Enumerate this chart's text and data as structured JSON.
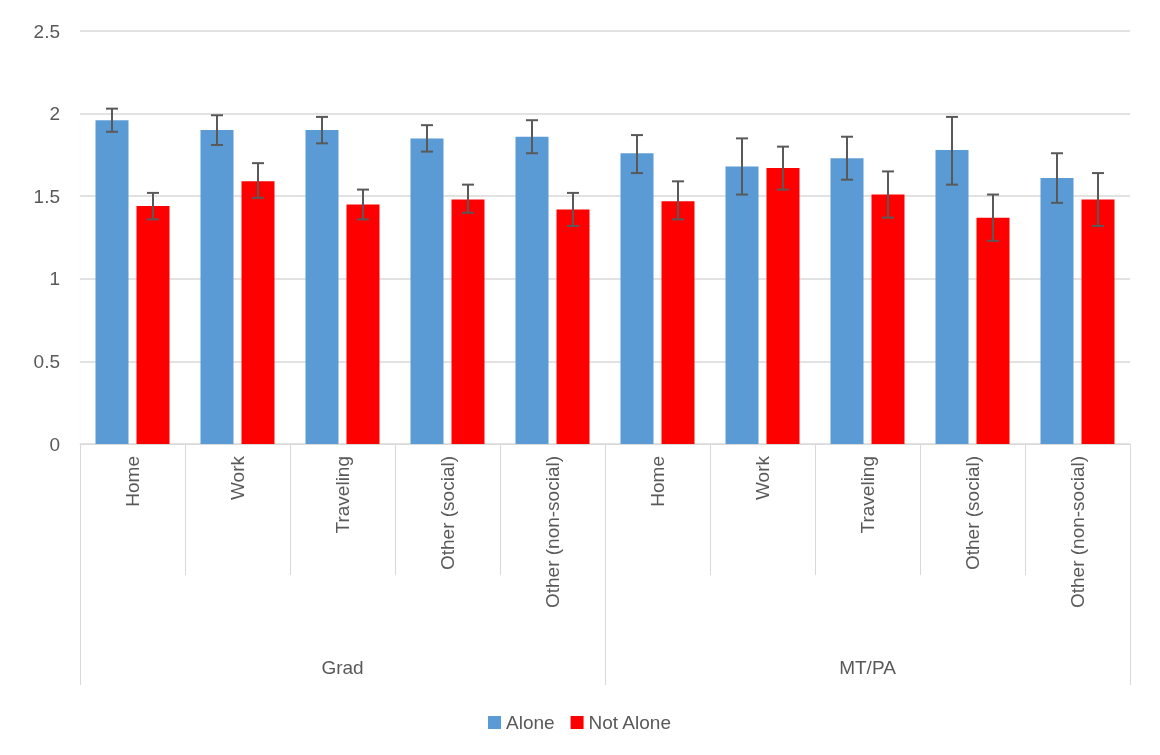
{
  "chart_data": {
    "type": "bar",
    "categories": [
      "Home",
      "Work",
      "Traveling",
      "Other (social)",
      "Other (non-social)",
      "Home",
      "Work",
      "Traveling",
      "Other (social)",
      "Other (non-social)"
    ],
    "annotations": [
      "Grad",
      "MT/PA"
    ],
    "series": [
      {
        "name": "Alone",
        "color": "#5b9bd5",
        "values": [
          1.96,
          1.9,
          1.9,
          1.85,
          1.86,
          1.76,
          1.68,
          1.73,
          1.78,
          1.61
        ],
        "errors": [
          [
            1.89,
            2.03
          ],
          [
            1.81,
            1.99
          ],
          [
            1.82,
            1.98
          ],
          [
            1.77,
            1.93
          ],
          [
            1.76,
            1.96
          ],
          [
            1.64,
            1.87
          ],
          [
            1.51,
            1.85
          ],
          [
            1.6,
            1.86
          ],
          [
            1.57,
            1.98
          ],
          [
            1.46,
            1.76
          ]
        ]
      },
      {
        "name": "Not Alone",
        "color": "#ff0000",
        "values": [
          1.44,
          1.59,
          1.45,
          1.48,
          1.42,
          1.47,
          1.67,
          1.51,
          1.37,
          1.48
        ],
        "errors": [
          [
            1.36,
            1.52
          ],
          [
            1.49,
            1.7
          ],
          [
            1.36,
            1.54
          ],
          [
            1.4,
            1.57
          ],
          [
            1.32,
            1.52
          ],
          [
            1.36,
            1.59
          ],
          [
            1.54,
            1.8
          ],
          [
            1.37,
            1.65
          ],
          [
            1.23,
            1.51
          ],
          [
            1.32,
            1.64
          ]
        ]
      }
    ],
    "ylim": [
      0,
      2.5
    ],
    "yticks": [
      0,
      0.5,
      1,
      1.5,
      2,
      2.5
    ],
    "grid": "y",
    "legend": "bottom"
  }
}
